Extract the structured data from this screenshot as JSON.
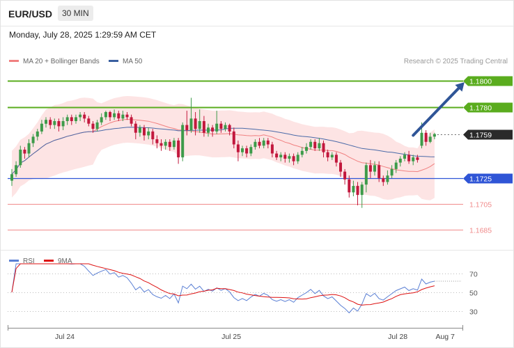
{
  "header": {
    "symbol": "EUR/USD",
    "timeframe": "30 MIN"
  },
  "date_line": "Monday, July 28, 2025 1:29:59 AM CET",
  "colors": {
    "up": "#3d9b4a",
    "down": "#c2183d",
    "band": "#fde4e4",
    "ma20": "#f08080",
    "ma50": "#4a6aa8",
    "resistance": "#5aac1e",
    "support": "#2f55d6",
    "weak": "#f08b8b",
    "current": "#2a2a2a",
    "arrow": "#2f5597",
    "rsi": "#5a7fd4",
    "rsi_ma": "#dd1111"
  },
  "chart_data": [
    {
      "type": "candlestick",
      "legend": [
        {
          "label": "MA 20 + Bollinger Bands",
          "color": "#f08080"
        },
        {
          "label": "MA 50",
          "color": "#3a5fa0"
        }
      ],
      "attribution": "Research © 2025 Trading Central",
      "ylim": [
        1.1675,
        1.1805
      ],
      "levels": [
        {
          "value": 1.18,
          "label": "1.1800",
          "kind": "resistance"
        },
        {
          "value": 1.178,
          "label": "1.1780",
          "kind": "resistance"
        },
        {
          "value": 1.1759,
          "label": "1.1759",
          "kind": "current"
        },
        {
          "value": 1.1725,
          "label": "1.1725",
          "kind": "support"
        },
        {
          "value": 1.1705,
          "label": "1.1705",
          "kind": "weak"
        },
        {
          "value": 1.1685,
          "label": "1.1685",
          "kind": "weak"
        }
      ],
      "x_ticks": [
        {
          "label": "Jul 24",
          "index": 12.4
        },
        {
          "label": "Jul 25",
          "index": 51.4
        },
        {
          "label": "Jul 28",
          "index": 90.4
        },
        {
          "label": "Aug 7",
          "index": 101.5
        }
      ],
      "forecast": {
        "from_index": 94,
        "from_price": 1.1758,
        "to_index": 106,
        "to_price": 1.1799
      },
      "candles": [
        [
          1.1723,
          1.1728,
          1.1719,
          1.1732
        ],
        [
          1.1728,
          1.1735,
          1.1726,
          1.1738
        ],
        [
          1.1735,
          1.1747,
          1.1733,
          1.175
        ],
        [
          1.1747,
          1.1744,
          1.174,
          1.1749
        ],
        [
          1.1744,
          1.1752,
          1.1741,
          1.1755
        ],
        [
          1.1752,
          1.1757,
          1.1749,
          1.1759
        ],
        [
          1.1757,
          1.1761,
          1.1754,
          1.1763
        ],
        [
          1.1761,
          1.1767,
          1.1759,
          1.177
        ],
        [
          1.1767,
          1.177,
          1.1764,
          1.1772
        ],
        [
          1.177,
          1.1766,
          1.1763,
          1.1772
        ],
        [
          1.1766,
          1.1769,
          1.1763,
          1.1771
        ],
        [
          1.1769,
          1.1765,
          1.1761,
          1.1771
        ],
        [
          1.1765,
          1.1769,
          1.1762,
          1.1772
        ],
        [
          1.1769,
          1.1772,
          1.1766,
          1.1774
        ],
        [
          1.1772,
          1.1769,
          1.1766,
          1.1774
        ],
        [
          1.1769,
          1.1772,
          1.1767,
          1.1774
        ],
        [
          1.1772,
          1.1774,
          1.1769,
          1.1776
        ],
        [
          1.1774,
          1.1771,
          1.1768,
          1.1776
        ],
        [
          1.1771,
          1.1767,
          1.1765,
          1.1773
        ],
        [
          1.1767,
          1.1763,
          1.176,
          1.1769
        ],
        [
          1.1763,
          1.1768,
          1.1761,
          1.177
        ],
        [
          1.1768,
          1.1772,
          1.1766,
          1.1775
        ],
        [
          1.1772,
          1.1776,
          1.177,
          1.1777
        ],
        [
          1.1776,
          1.1772,
          1.1769,
          1.1777
        ],
        [
          1.1772,
          1.1775,
          1.177,
          1.1778
        ],
        [
          1.1775,
          1.1771,
          1.1769,
          1.1777
        ],
        [
          1.1771,
          1.1774,
          1.1769,
          1.1777
        ],
        [
          1.1774,
          1.1772,
          1.177,
          1.1776
        ],
        [
          1.1772,
          1.1767,
          1.1765,
          1.1774
        ],
        [
          1.1767,
          1.176,
          1.1755,
          1.1769
        ],
        [
          1.176,
          1.1764,
          1.1757,
          1.1766
        ],
        [
          1.1764,
          1.1758,
          1.1754,
          1.1766
        ],
        [
          1.1758,
          1.1761,
          1.1755,
          1.1764
        ],
        [
          1.1761,
          1.1755,
          1.1751,
          1.1763
        ],
        [
          1.1755,
          1.1752,
          1.1748,
          1.1758
        ],
        [
          1.1752,
          1.175,
          1.1746,
          1.1755
        ],
        [
          1.175,
          1.1753,
          1.1747,
          1.1755
        ],
        [
          1.1753,
          1.1749,
          1.1746,
          1.1755
        ],
        [
          1.1749,
          1.1754,
          1.1747,
          1.1756
        ],
        [
          1.1754,
          1.1741,
          1.1736,
          1.1756
        ],
        [
          1.1741,
          1.1766,
          1.1738,
          1.1768
        ],
        [
          1.1766,
          1.1762,
          1.1758,
          1.1777
        ],
        [
          1.1762,
          1.1771,
          1.176,
          1.1787
        ],
        [
          1.1771,
          1.1763,
          1.1758,
          1.1776
        ],
        [
          1.1763,
          1.1769,
          1.176,
          1.1778
        ],
        [
          1.1769,
          1.176,
          1.1757,
          1.1773
        ],
        [
          1.176,
          1.1764,
          1.1757,
          1.1767
        ],
        [
          1.1764,
          1.1761,
          1.1757,
          1.1766
        ],
        [
          1.1761,
          1.1767,
          1.1759,
          1.1777
        ],
        [
          1.1767,
          1.1763,
          1.176,
          1.1769
        ],
        [
          1.1763,
          1.1766,
          1.1761,
          1.1768
        ],
        [
          1.1766,
          1.1761,
          1.1758,
          1.1767
        ],
        [
          1.1761,
          1.1751,
          1.1748,
          1.1764
        ],
        [
          1.1751,
          1.1745,
          1.1738,
          1.1754
        ],
        [
          1.1745,
          1.1748,
          1.1742,
          1.175
        ],
        [
          1.1748,
          1.1744,
          1.1741,
          1.175
        ],
        [
          1.1744,
          1.1749,
          1.1742,
          1.1751
        ],
        [
          1.1749,
          1.1753,
          1.1747,
          1.1755
        ],
        [
          1.1753,
          1.175,
          1.1748,
          1.1756
        ],
        [
          1.175,
          1.1754,
          1.1748,
          1.1756
        ],
        [
          1.1754,
          1.1751,
          1.1748,
          1.1756
        ],
        [
          1.1751,
          1.1744,
          1.1741,
          1.1753
        ],
        [
          1.1744,
          1.1741,
          1.1739,
          1.1746
        ],
        [
          1.1741,
          1.1743,
          1.1738,
          1.1745
        ],
        [
          1.1743,
          1.174,
          1.1737,
          1.1745
        ],
        [
          1.174,
          1.1742,
          1.1737,
          1.1744
        ],
        [
          1.1742,
          1.1738,
          1.1735,
          1.1744
        ],
        [
          1.1738,
          1.1743,
          1.1736,
          1.1745
        ],
        [
          1.1743,
          1.1746,
          1.1741,
          1.1749
        ],
        [
          1.1746,
          1.1749,
          1.1744,
          1.1752
        ],
        [
          1.1749,
          1.1753,
          1.1747,
          1.1755
        ],
        [
          1.1753,
          1.1748,
          1.1746,
          1.1755
        ],
        [
          1.1748,
          1.1752,
          1.1746,
          1.1756
        ],
        [
          1.1752,
          1.1745,
          1.1741,
          1.1754
        ],
        [
          1.1745,
          1.1741,
          1.1738,
          1.1747
        ],
        [
          1.1741,
          1.1743,
          1.1739,
          1.1745
        ],
        [
          1.1743,
          1.1737,
          1.1734,
          1.1745
        ],
        [
          1.1737,
          1.173,
          1.1726,
          1.1739
        ],
        [
          1.173,
          1.1724,
          1.172,
          1.1732
        ],
        [
          1.1724,
          1.1714,
          1.171,
          1.1727
        ],
        [
          1.1714,
          1.1719,
          1.1711,
          1.1723
        ],
        [
          1.1719,
          1.1712,
          1.1704,
          1.1722
        ],
        [
          1.1712,
          1.172,
          1.1702,
          1.1722
        ],
        [
          1.172,
          1.1735,
          1.1714,
          1.1737
        ],
        [
          1.1735,
          1.173,
          1.1725,
          1.1739
        ],
        [
          1.173,
          1.1735,
          1.1727,
          1.1738
        ],
        [
          1.1735,
          1.1725,
          1.1722,
          1.1738
        ],
        [
          1.1725,
          1.1722,
          1.1719,
          1.1727
        ],
        [
          1.1722,
          1.1727,
          1.172,
          1.1731
        ],
        [
          1.1727,
          1.1732,
          1.1725,
          1.1735
        ],
        [
          1.1732,
          1.1737,
          1.1729,
          1.1739
        ],
        [
          1.1737,
          1.174,
          1.1734,
          1.1742
        ],
        [
          1.174,
          1.1743,
          1.1738,
          1.1745
        ],
        [
          1.1743,
          1.1738,
          1.1736,
          1.1746
        ],
        [
          1.1738,
          1.1741,
          1.1735,
          1.1743
        ],
        [
          1.1741,
          1.1739,
          1.1737,
          1.1743
        ],
        [
          1.175,
          1.176,
          1.1748,
          1.1768
        ],
        [
          1.176,
          1.1753,
          1.175,
          1.1762
        ],
        [
          1.1753,
          1.1757,
          1.1752,
          1.176
        ],
        [
          1.1757,
          1.1759,
          1.1755,
          1.176
        ]
      ]
    },
    {
      "type": "line",
      "legend": [
        {
          "label": "RSI",
          "color": "#5a7fd4"
        },
        {
          "label": "9MA",
          "color": "#dd1111"
        }
      ],
      "ylim": [
        20,
        80
      ],
      "y_ticks": [
        {
          "value": 70,
          "label": "70"
        },
        {
          "value": 50,
          "label": "50"
        },
        {
          "value": 30,
          "label": "30"
        }
      ]
    }
  ]
}
